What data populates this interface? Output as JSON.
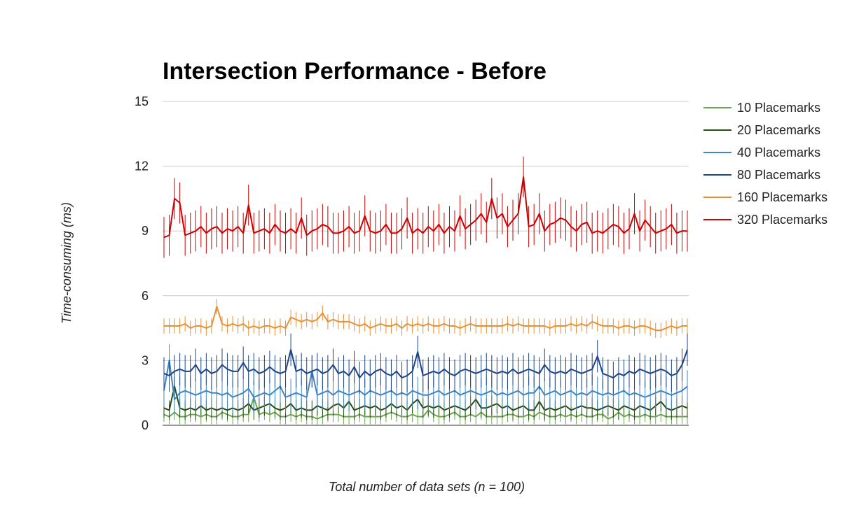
{
  "chart_data": {
    "type": "line",
    "title": "Intersection Performance - Before",
    "xlabel": "Total number of data sets (n = 100)",
    "ylabel": "Time-consuming (ms)",
    "ylim": [
      0,
      15
    ],
    "yticks": [
      0,
      3,
      6,
      9,
      12,
      15
    ],
    "grid": true,
    "legend_position": "right",
    "error_bars": true,
    "x": [
      1,
      2,
      3,
      4,
      5,
      6,
      7,
      8,
      9,
      10,
      11,
      12,
      13,
      14,
      15,
      16,
      17,
      18,
      19,
      20,
      21,
      22,
      23,
      24,
      25,
      26,
      27,
      28,
      29,
      30,
      31,
      32,
      33,
      34,
      35,
      36,
      37,
      38,
      39,
      40,
      41,
      42,
      43,
      44,
      45,
      46,
      47,
      48,
      49,
      50,
      51,
      52,
      53,
      54,
      55,
      56,
      57,
      58,
      59,
      60,
      61,
      62,
      63,
      64,
      65,
      66,
      67,
      68,
      69,
      70,
      71,
      72,
      73,
      74,
      75,
      76,
      77,
      78,
      79,
      80,
      81,
      82,
      83,
      84,
      85,
      86,
      87,
      88,
      89,
      90,
      91,
      92,
      93,
      94,
      95,
      96,
      97,
      98,
      99,
      100
    ],
    "series": [
      {
        "name": "10 Placemarks",
        "color": "#6aa84f",
        "error": 0.35,
        "values": [
          0.5,
          0.4,
          0.6,
          0.4,
          0.4,
          0.5,
          0.5,
          0.4,
          0.5,
          0.4,
          0.4,
          0.6,
          0.5,
          0.4,
          0.4,
          0.5,
          0.5,
          1.3,
          0.5,
          0.6,
          0.5,
          0.6,
          0.4,
          0.4,
          0.5,
          0.4,
          0.5,
          0.4,
          0.4,
          0.3,
          0.4,
          0.5,
          0.5,
          0.5,
          0.4,
          0.4,
          0.4,
          0.5,
          0.4,
          0.4,
          0.4,
          0.4,
          0.5,
          0.6,
          0.5,
          0.4,
          0.4,
          0.5,
          0.4,
          0.4,
          0.7,
          0.5,
          0.4,
          0.4,
          0.5,
          0.6,
          0.4,
          0.4,
          0.5,
          0.4,
          0.6,
          0.4,
          0.4,
          0.4,
          0.4,
          0.5,
          0.5,
          0.4,
          0.4,
          0.5,
          0.4,
          0.6,
          0.5,
          0.4,
          0.4,
          0.5,
          0.4,
          0.5,
          0.4,
          0.5,
          0.4,
          0.4,
          0.5,
          0.5,
          0.3,
          0.4,
          0.6,
          0.4,
          0.5,
          0.4,
          0.4,
          0.5,
          0.4,
          0.4,
          0.5,
          0.4,
          0.4,
          0.4,
          0.4,
          0.4
        ]
      },
      {
        "name": "20 Placemarks",
        "color": "#274e13",
        "error": 0.45,
        "values": [
          0.8,
          0.7,
          1.8,
          0.8,
          0.7,
          0.8,
          0.7,
          0.9,
          0.7,
          0.8,
          0.7,
          0.8,
          0.7,
          0.8,
          0.7,
          0.8,
          1.0,
          0.7,
          0.8,
          0.9,
          1.0,
          0.8,
          0.7,
          0.8,
          1.0,
          0.7,
          0.8,
          0.7,
          0.7,
          0.9,
          0.8,
          0.7,
          0.9,
          1.0,
          0.8,
          1.1,
          0.7,
          0.8,
          0.9,
          0.8,
          0.9,
          0.7,
          0.8,
          1.0,
          0.8,
          0.9,
          0.7,
          1.0,
          1.2,
          0.8,
          0.9,
          0.8,
          0.9,
          0.7,
          0.8,
          0.9,
          0.8,
          0.7,
          0.9,
          1.2,
          0.8,
          0.8,
          0.9,
          1.0,
          0.8,
          0.9,
          0.7,
          0.8,
          0.9,
          0.7,
          0.7,
          1.1,
          0.7,
          0.8,
          0.7,
          0.8,
          0.9,
          0.7,
          0.8,
          0.9,
          0.8,
          0.8,
          0.7,
          0.8,
          0.9,
          0.8,
          0.7,
          0.9,
          0.8,
          0.7,
          0.9,
          0.8,
          0.7,
          0.9,
          1.1,
          0.8,
          0.7,
          0.8,
          0.9,
          0.8
        ]
      },
      {
        "name": "40 Placemarks",
        "color": "#3d85c6",
        "error": 0.75,
        "values": [
          1.6,
          3.0,
          1.2,
          1.5,
          1.6,
          1.5,
          1.4,
          1.5,
          1.6,
          1.5,
          1.5,
          1.4,
          1.5,
          1.3,
          1.4,
          1.5,
          1.7,
          1.3,
          1.4,
          1.5,
          1.4,
          1.6,
          1.8,
          1.3,
          1.4,
          1.5,
          1.4,
          1.3,
          2.5,
          1.4,
          1.5,
          1.6,
          1.4,
          1.6,
          1.5,
          1.4,
          1.5,
          1.6,
          1.4,
          1.6,
          1.5,
          1.4,
          1.5,
          1.6,
          1.4,
          1.5,
          1.4,
          1.6,
          1.5,
          1.4,
          1.4,
          1.5,
          1.6,
          1.4,
          1.5,
          1.6,
          1.4,
          1.5,
          1.6,
          1.5,
          1.4,
          1.5,
          1.6,
          1.4,
          1.5,
          1.4,
          1.5,
          1.6,
          1.4,
          1.5,
          1.5,
          1.8,
          1.4,
          1.5,
          1.6,
          1.4,
          1.5,
          1.6,
          1.4,
          1.5,
          1.4,
          1.6,
          1.5,
          1.4,
          1.5,
          1.4,
          1.5,
          1.6,
          1.4,
          1.5,
          1.4,
          1.3,
          1.4,
          1.5,
          1.6,
          1.5,
          1.4,
          1.5,
          1.6,
          1.8
        ]
      },
      {
        "name": "80 Placemarks",
        "color": "#1c4587",
        "error": 0.75,
        "values": [
          2.4,
          2.3,
          2.5,
          2.6,
          2.5,
          2.5,
          2.8,
          2.4,
          2.6,
          2.4,
          2.5,
          2.8,
          2.6,
          2.5,
          2.5,
          2.9,
          2.5,
          2.6,
          2.4,
          2.5,
          2.7,
          2.5,
          2.4,
          2.5,
          3.5,
          2.5,
          2.6,
          2.4,
          2.5,
          2.6,
          2.4,
          2.5,
          2.8,
          2.4,
          2.5,
          2.3,
          2.7,
          2.2,
          2.5,
          2.3,
          2.5,
          2.6,
          2.4,
          2.3,
          2.5,
          2.2,
          2.3,
          2.5,
          3.4,
          2.3,
          2.4,
          2.5,
          2.4,
          2.6,
          2.4,
          2.3,
          2.5,
          2.6,
          2.5,
          2.4,
          2.5,
          2.6,
          2.5,
          2.4,
          2.5,
          2.4,
          2.6,
          2.4,
          2.5,
          2.6,
          2.5,
          2.4,
          2.8,
          2.5,
          2.4,
          2.5,
          2.4,
          2.6,
          2.5,
          2.4,
          2.5,
          2.6,
          3.2,
          2.4,
          2.3,
          2.2,
          2.4,
          2.3,
          2.5,
          2.4,
          2.6,
          2.5,
          2.4,
          2.5,
          2.6,
          2.5,
          2.3,
          2.4,
          2.8,
          3.5
        ]
      },
      {
        "name": "160 Placemarks",
        "color": "#e69138",
        "error": 0.35,
        "values": [
          4.6,
          4.6,
          4.6,
          4.6,
          4.7,
          4.5,
          4.6,
          4.6,
          4.5,
          4.6,
          5.5,
          4.7,
          4.6,
          4.7,
          4.6,
          4.7,
          4.5,
          4.6,
          4.5,
          4.6,
          4.6,
          4.5,
          4.6,
          4.5,
          5.0,
          4.9,
          4.8,
          4.9,
          4.8,
          4.9,
          5.2,
          4.8,
          4.9,
          4.8,
          4.8,
          4.8,
          4.7,
          4.6,
          4.7,
          4.5,
          4.6,
          4.7,
          4.6,
          4.6,
          4.7,
          4.5,
          4.7,
          4.6,
          4.7,
          4.6,
          4.7,
          4.6,
          4.6,
          4.7,
          4.6,
          4.6,
          4.5,
          4.6,
          4.7,
          4.6,
          4.6,
          4.6,
          4.6,
          4.6,
          4.6,
          4.7,
          4.6,
          4.7,
          4.6,
          4.6,
          4.6,
          4.6,
          4.6,
          4.5,
          4.6,
          4.6,
          4.6,
          4.7,
          4.6,
          4.7,
          4.6,
          4.8,
          4.7,
          4.6,
          4.6,
          4.6,
          4.5,
          4.6,
          4.6,
          4.5,
          4.6,
          4.6,
          4.5,
          4.4,
          4.4,
          4.5,
          4.6,
          4.5,
          4.6,
          4.6
        ]
      },
      {
        "name": "320 Placemarks",
        "color": "#cc0000",
        "error": 0.95,
        "values": [
          8.7,
          8.8,
          10.5,
          10.3,
          8.8,
          8.9,
          9.0,
          9.2,
          8.9,
          9.1,
          9.2,
          8.9,
          9.1,
          9.0,
          9.2,
          8.9,
          10.2,
          8.9,
          9.0,
          9.1,
          8.9,
          9.3,
          9.0,
          8.9,
          9.1,
          8.9,
          9.6,
          8.8,
          9.0,
          9.1,
          9.3,
          9.2,
          8.9,
          8.9,
          9.0,
          9.2,
          8.9,
          9.0,
          9.7,
          9.0,
          8.9,
          9.0,
          9.3,
          8.9,
          8.9,
          9.1,
          9.6,
          8.9,
          9.1,
          8.9,
          9.2,
          9.0,
          9.3,
          8.9,
          9.2,
          9.0,
          9.7,
          9.1,
          9.3,
          9.5,
          9.8,
          9.4,
          10.5,
          9.6,
          9.8,
          9.2,
          9.5,
          9.8,
          11.5,
          9.2,
          9.3,
          9.8,
          9.0,
          9.3,
          9.4,
          9.6,
          9.5,
          9.2,
          9.0,
          9.3,
          9.4,
          8.9,
          9.0,
          8.9,
          9.1,
          9.3,
          9.2,
          8.9,
          9.1,
          9.8,
          9.0,
          9.5,
          9.2,
          8.9,
          9.0,
          9.1,
          9.3,
          8.9,
          9.0,
          9.0
        ]
      }
    ]
  }
}
